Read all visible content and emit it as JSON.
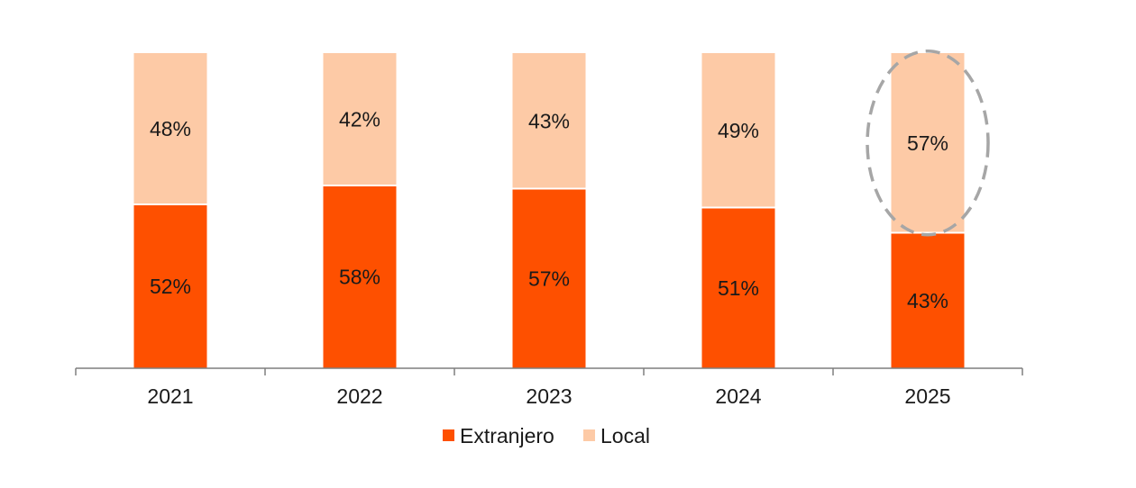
{
  "chart_data": {
    "type": "bar",
    "stacked": true,
    "title": "",
    "xlabel": "",
    "ylabel": "",
    "ylim": [
      0,
      100
    ],
    "grid": false,
    "legend_position": "bottom",
    "categories": [
      "2021",
      "2022",
      "2023",
      "2024",
      "2025"
    ],
    "series": [
      {
        "name": "Extranjero",
        "color": "#fe5000",
        "values": [
          52,
          58,
          57,
          51,
          43
        ],
        "labels": [
          "52%",
          "58%",
          "57%",
          "51%",
          "43%"
        ]
      },
      {
        "name": "Local",
        "color": "#fdcaa6",
        "values": [
          48,
          42,
          43,
          49,
          57
        ],
        "labels": [
          "48%",
          "42%",
          "43%",
          "49%",
          "57%"
        ]
      }
    ],
    "highlight": {
      "category": "2025",
      "series": "Local",
      "style": "dashed-ellipse",
      "color": "#a6a6a6"
    },
    "axis_color": "#7f7f7f"
  }
}
